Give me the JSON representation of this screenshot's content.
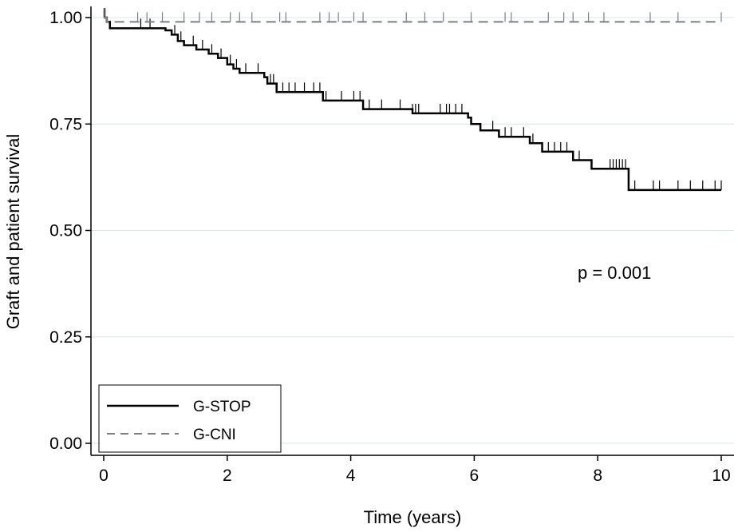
{
  "chart_data": {
    "type": "line",
    "xlabel": "Time (years)",
    "ylabel": "Graft and patient survival",
    "xlim": [
      0,
      10
    ],
    "ylim": [
      0,
      1
    ],
    "x_ticks": [
      "0",
      "2",
      "4",
      "6",
      "8",
      "10"
    ],
    "y_ticks": [
      "0.00",
      "0.25",
      "0.50",
      "0.75",
      "1.00"
    ],
    "grid": "horizontal",
    "legend_position": "bottom-left",
    "annotation": "p = 0.001",
    "series": [
      {
        "name": "G-STOP",
        "style": "solid",
        "color": "#000000",
        "steps": [
          [
            0,
            1.0
          ],
          [
            0.05,
            0.99
          ],
          [
            0.1,
            0.975
          ],
          [
            1.0,
            0.97
          ],
          [
            1.1,
            0.96
          ],
          [
            1.2,
            0.945
          ],
          [
            1.3,
            0.935
          ],
          [
            1.5,
            0.925
          ],
          [
            1.7,
            0.915
          ],
          [
            1.85,
            0.905
          ],
          [
            2.0,
            0.89
          ],
          [
            2.1,
            0.88
          ],
          [
            2.2,
            0.87
          ],
          [
            2.6,
            0.86
          ],
          [
            2.65,
            0.845
          ],
          [
            2.8,
            0.825
          ],
          [
            3.55,
            0.805
          ],
          [
            4.2,
            0.785
          ],
          [
            5.0,
            0.775
          ],
          [
            5.9,
            0.765
          ],
          [
            5.95,
            0.75
          ],
          [
            6.1,
            0.735
          ],
          [
            6.4,
            0.72
          ],
          [
            6.9,
            0.705
          ],
          [
            7.1,
            0.685
          ],
          [
            7.6,
            0.665
          ],
          [
            7.9,
            0.645
          ],
          [
            8.5,
            0.595
          ],
          [
            10.0,
            0.595
          ]
        ],
        "censor_times": [
          0.02,
          0.6,
          0.75,
          1.15,
          1.25,
          1.45,
          1.6,
          1.75,
          1.9,
          2.05,
          2.15,
          2.3,
          2.5,
          2.7,
          2.75,
          2.9,
          3.0,
          3.1,
          3.25,
          3.4,
          3.5,
          3.6,
          3.85,
          4.05,
          4.15,
          4.3,
          4.5,
          4.8,
          5.0,
          5.05,
          5.1,
          5.45,
          5.55,
          5.6,
          5.7,
          5.8,
          6.3,
          6.5,
          6.6,
          6.8,
          6.95,
          7.2,
          7.3,
          7.4,
          7.5,
          7.7,
          8.2,
          8.25,
          8.3,
          8.35,
          8.4,
          8.45,
          8.6,
          8.9,
          9.0,
          9.3,
          9.5,
          9.7,
          9.9,
          10.0
        ]
      },
      {
        "name": "G-CNI",
        "style": "dashed",
        "color": "#7f7f7f",
        "steps": [
          [
            0,
            1.0
          ],
          [
            0.05,
            0.99
          ],
          [
            10.0,
            0.99
          ]
        ],
        "censor_times": [
          0.0,
          0.55,
          0.7,
          0.95,
          1.3,
          1.55,
          1.75,
          2.05,
          2.2,
          2.4,
          2.85,
          2.95,
          3.5,
          3.65,
          3.8,
          4.05,
          4.2,
          4.9,
          5.2,
          5.5,
          5.95,
          6.5,
          6.6,
          7.2,
          7.45,
          7.6,
          7.85,
          8.1,
          8.85,
          9.3,
          10.0
        ]
      }
    ]
  }
}
